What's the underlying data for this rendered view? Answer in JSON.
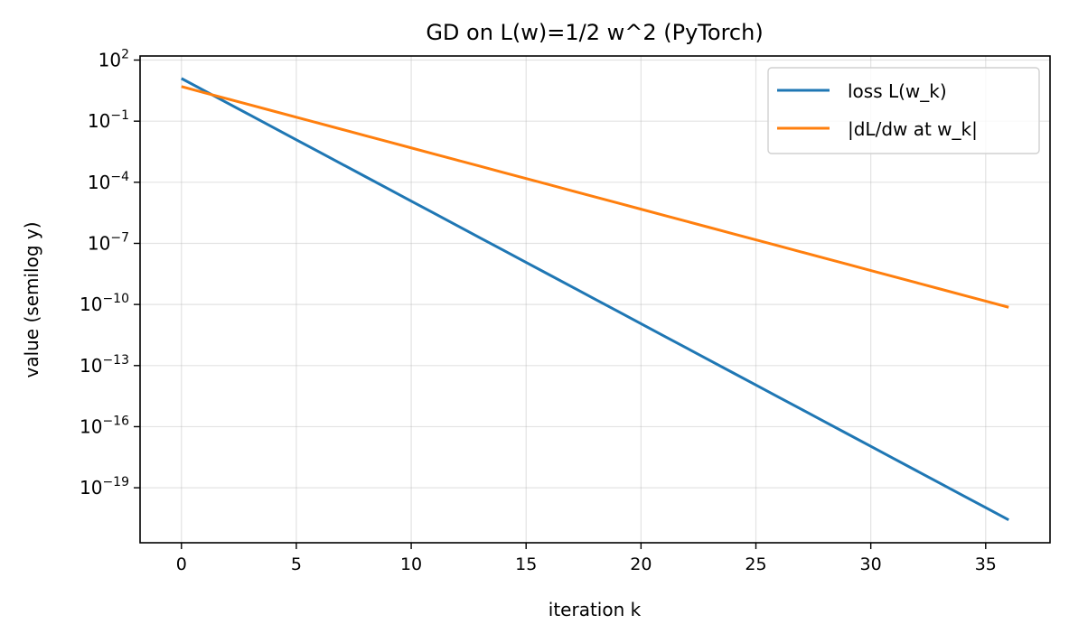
{
  "chart_data": {
    "type": "line",
    "title": "GD on L(w)=1/2 w^2 (PyTorch)",
    "xlabel": "iteration k",
    "ylabel": "value (semilog y)",
    "xscale": "linear",
    "yscale": "log",
    "xlim": [
      -1.8,
      37.8
    ],
    "ylim_log10": [
      2.2,
      -21.7
    ],
    "xticks": [
      0,
      5,
      10,
      15,
      20,
      25,
      30,
      35
    ],
    "yticks_exp": [
      2,
      -1,
      -4,
      -7,
      -10,
      -13,
      -16,
      -19
    ],
    "ytick_base": "10",
    "grid": true,
    "legend_position": "upper-right",
    "x": [
      0,
      1,
      2,
      3,
      4,
      5,
      6,
      7,
      8,
      9,
      10,
      11,
      12,
      13,
      14,
      15,
      16,
      17,
      18,
      19,
      20,
      21,
      22,
      23,
      24,
      25,
      26,
      27,
      28,
      29,
      30,
      31,
      32,
      33,
      34,
      35,
      36
    ],
    "series": [
      {
        "name": "loss L(w_k)",
        "color": "#1f77b4",
        "values": [
          12.5,
          3.125,
          0.78125,
          0.1953125,
          0.048828125,
          0.01220703125,
          0.0030517578125,
          0.0007629,
          0.0001907,
          4.768e-05,
          1.192e-05,
          2.98e-06,
          7.451e-07,
          1.863e-07,
          4.657e-08,
          1.164e-08,
          2.91e-09,
          7.276e-10,
          1.819e-10,
          4.547e-11,
          1.137e-11,
          2.842e-12,
          7.105e-13,
          1.776e-13,
          4.441e-14,
          1.11e-14,
          2.776e-15,
          6.939e-16,
          1.735e-16,
          4.337e-17,
          1.084e-17,
          2.711e-18,
          6.776e-19,
          1.694e-19,
          4.235e-20,
          1.059e-20,
          2.647e-21
        ]
      },
      {
        "name": "|dL/dw at w_k|",
        "color": "#ff7f0e",
        "values": [
          5,
          2.5,
          1.25,
          0.625,
          0.3125,
          0.15625,
          0.078125,
          0.0390625,
          0.01953125,
          0.009765625,
          0.0048828125,
          0.00244140625,
          0.001220703125,
          0.0006104,
          0.0003052,
          0.0001526,
          7.629e-05,
          3.815e-05,
          1.907e-05,
          9.537e-06,
          4.768e-06,
          2.384e-06,
          1.192e-06,
          5.96e-07,
          2.98e-07,
          1.49e-07,
          7.451e-08,
          3.725e-08,
          1.863e-08,
          9.313e-09,
          4.657e-09,
          2.328e-09,
          1.164e-09,
          5.821e-10,
          2.91e-10,
          1.455e-10,
          7.276e-11
        ]
      }
    ]
  }
}
